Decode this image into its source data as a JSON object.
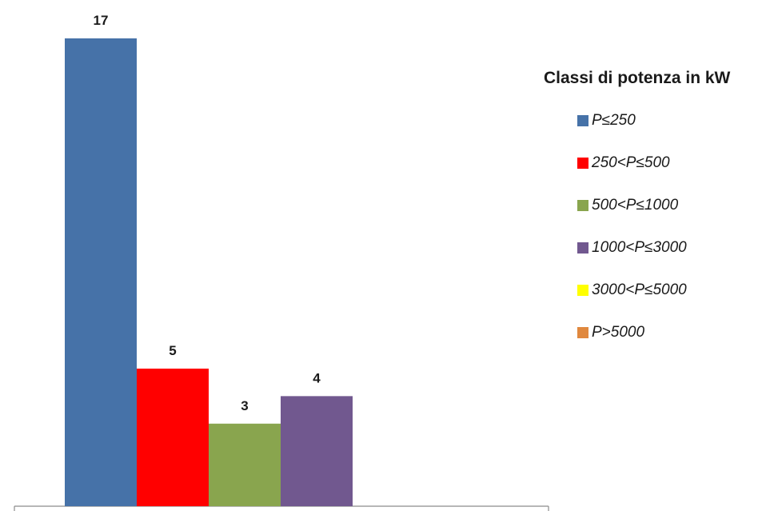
{
  "chart_data": {
    "type": "bar",
    "categories": [
      "P≤250",
      "250<P≤500",
      "500<P≤1000",
      "1000<P≤3000",
      "3000<P≤5000",
      "P>5000"
    ],
    "values": [
      17,
      5,
      3,
      4,
      null,
      null
    ],
    "data_labels": [
      "17",
      "5",
      "3",
      "4",
      "",
      ""
    ],
    "colors": [
      "#4672A8",
      "#FF0000",
      "#89A54E",
      "#71588F",
      "#FFFF00",
      "#E0883E"
    ],
    "ylim": [
      0,
      17
    ],
    "grid": false,
    "legend": {
      "title": "Classi di potenza in kW",
      "position": "right",
      "entries": [
        "P≤250",
        "250<P≤500",
        "500<P≤1000",
        "1000<P≤3000",
        "3000<P≤5000",
        "P>5000"
      ]
    }
  }
}
